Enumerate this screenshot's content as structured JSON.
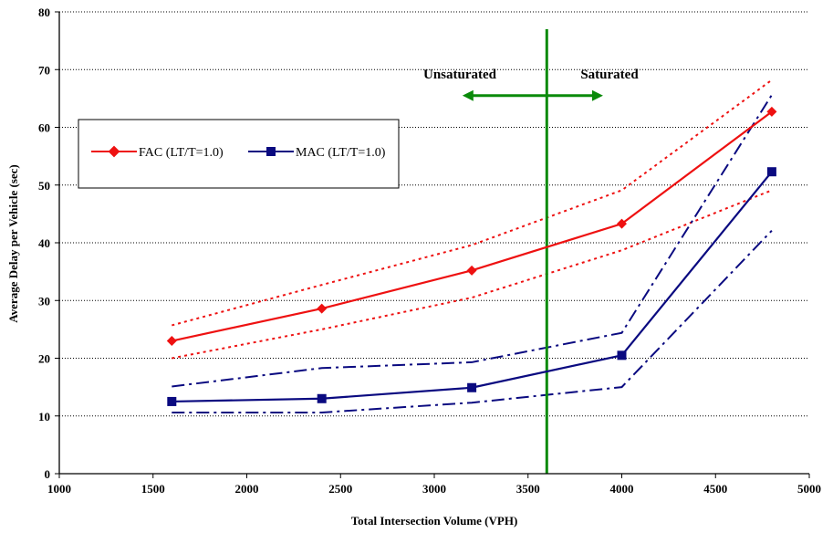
{
  "chart_data": {
    "type": "line",
    "xlabel": "Total Intersection Volume (VPH)",
    "ylabel": "Average Delay per Vehicle (sec)",
    "xlim": [
      1000,
      5000
    ],
    "ylim": [
      0,
      80
    ],
    "xticks": [
      "1000",
      "1500",
      "2000",
      "2500",
      "3000",
      "3500",
      "4000",
      "4500",
      "5000"
    ],
    "yticks": [
      "0",
      "10",
      "20",
      "30",
      "40",
      "50",
      "60",
      "70",
      "80"
    ],
    "grid": "horizontal dotted",
    "legend_position": "upper-left",
    "series": [
      {
        "name": "FAC (LT/T=1.0)",
        "color": "#ee1111",
        "marker": "diamond",
        "line": "solid",
        "x": [
          1600,
          2400,
          3200,
          4000,
          4800
        ],
        "y": [
          23.0,
          28.6,
          35.2,
          43.3,
          62.7
        ]
      },
      {
        "name": "MAC (LT/T=1.0)",
        "color": "#0a0a80",
        "marker": "square",
        "line": "solid",
        "x": [
          1600,
          2400,
          3200,
          4000,
          4800
        ],
        "y": [
          12.5,
          13.0,
          14.9,
          20.5,
          52.3
        ]
      }
    ],
    "bands": [
      {
        "of": "FAC (LT/T=1.0)",
        "color": "#ee1111",
        "line": "dotted",
        "x": [
          1600,
          2400,
          3200,
          4000,
          4800
        ],
        "y": [
          25.7,
          32.7,
          39.6,
          49.1,
          68.2
        ]
      },
      {
        "of": "FAC (LT/T=1.0)",
        "color": "#ee1111",
        "line": "dotted",
        "x": [
          1600,
          2400,
          3200,
          4000,
          4800
        ],
        "y": [
          20.0,
          25.0,
          30.5,
          38.7,
          49.1
        ]
      },
      {
        "of": "MAC (LT/T=1.0)",
        "color": "#0a0a80",
        "line": "dash-dot",
        "x": [
          1600,
          2400,
          3200,
          4000,
          4800
        ],
        "y": [
          15.1,
          18.3,
          19.3,
          24.4,
          65.6
        ]
      },
      {
        "of": "MAC (LT/T=1.0)",
        "color": "#0a0a80",
        "line": "dash-dot",
        "x": [
          1600,
          2400,
          3200,
          4000,
          4800
        ],
        "y": [
          10.6,
          10.6,
          12.3,
          15.0,
          42.1
        ]
      }
    ],
    "threshold": {
      "x": 3600,
      "color": "#0a8a0a",
      "y_top": 77.0
    },
    "annotations": {
      "left_label": "Unsaturated",
      "right_label": "Saturated",
      "arrow_y": 65.5,
      "arrow_from": 3150,
      "arrow_to": 3900
    }
  }
}
